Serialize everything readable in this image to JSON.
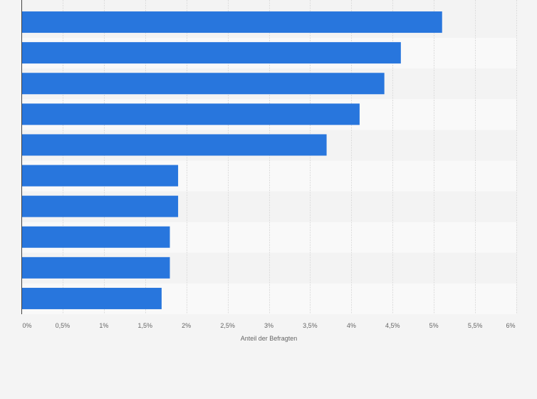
{
  "chart_data": {
    "type": "bar",
    "orientation": "horizontal",
    "categories": [
      "",
      "",
      "",
      "",
      "",
      "",
      "",
      "",
      "",
      ""
    ],
    "values": [
      5.1,
      4.6,
      4.4,
      4.1,
      3.7,
      1.9,
      1.9,
      1.8,
      1.8,
      1.7
    ],
    "bar_color": "#2876dd",
    "title": "",
    "xlabel": "Anteil der Befragten",
    "ylabel": "",
    "xlim": [
      0,
      6
    ],
    "xticks": [
      0,
      0.5,
      1,
      1.5,
      2,
      2.5,
      3,
      3.5,
      4,
      4.5,
      5,
      5.5,
      6
    ],
    "xtick_labels": [
      "0%",
      "0,5%",
      "1%",
      "1,5%",
      "2%",
      "2,5%",
      "3%",
      "3,5%",
      "4%",
      "4,5%",
      "5%",
      "5,5%",
      "6%"
    ],
    "grid": true,
    "legend": "none"
  }
}
